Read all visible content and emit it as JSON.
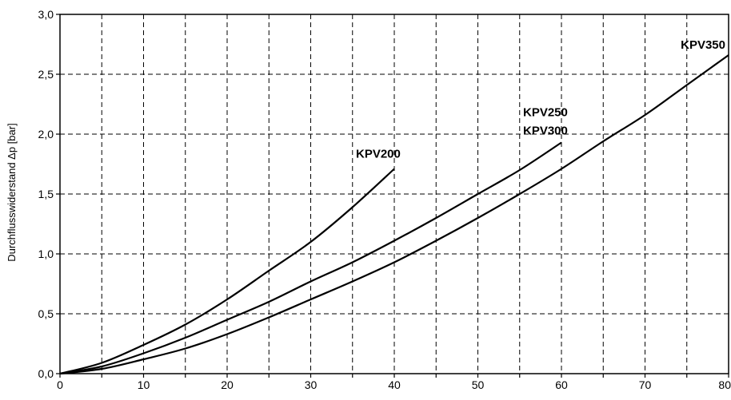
{
  "chart_data": {
    "type": "line",
    "title": "",
    "xlabel": "",
    "ylabel": "Durchflusswiderstand Δp [bar]",
    "xlim": [
      0,
      80
    ],
    "ylim": [
      0,
      3.0
    ],
    "grid": true,
    "x_ticks": [
      0,
      5,
      10,
      15,
      20,
      25,
      30,
      35,
      40,
      45,
      50,
      55,
      60,
      65,
      70,
      75,
      80
    ],
    "x_tick_labels": [
      "0",
      "10",
      "20",
      "30",
      "40",
      "50",
      "60",
      "70",
      "80"
    ],
    "x_tick_label_values": [
      0,
      10,
      20,
      30,
      40,
      50,
      60,
      70,
      80
    ],
    "y_ticks": [
      0,
      0.5,
      1.0,
      1.5,
      2.0,
      2.5,
      3.0
    ],
    "y_tick_labels": [
      "0,0",
      "0,5",
      "1,0",
      "1,5",
      "2,0",
      "2,5",
      "3,0"
    ],
    "series": [
      {
        "name": "KPV200",
        "x": [
          0,
          5,
          10,
          15,
          20,
          25,
          30,
          35,
          40
        ],
        "y": [
          0,
          0.09,
          0.24,
          0.41,
          0.62,
          0.86,
          1.1,
          1.39,
          1.71
        ]
      },
      {
        "name": "KPV250 / KPV300",
        "x": [
          0,
          5,
          10,
          15,
          20,
          25,
          30,
          35,
          40,
          45,
          50,
          55,
          60
        ],
        "y": [
          0,
          0.06,
          0.17,
          0.3,
          0.45,
          0.6,
          0.77,
          0.93,
          1.11,
          1.3,
          1.5,
          1.7,
          1.93
        ]
      },
      {
        "name": "KPV350",
        "x": [
          0,
          5,
          10,
          15,
          20,
          25,
          30,
          35,
          40,
          45,
          50,
          55,
          60,
          65,
          70,
          75,
          80
        ],
        "y": [
          0,
          0.04,
          0.12,
          0.21,
          0.33,
          0.47,
          0.62,
          0.77,
          0.93,
          1.11,
          1.3,
          1.5,
          1.71,
          1.94,
          2.16,
          2.41,
          2.66
        ]
      }
    ],
    "annotations": [
      {
        "text": "KPV200",
        "x": 40,
        "y": 1.71
      },
      {
        "text": "KPV250",
        "x": 60,
        "y": 1.93
      },
      {
        "text": "KPV300",
        "x": 60,
        "y": 1.93
      },
      {
        "text": "KPV350",
        "x": 80,
        "y": 2.66
      }
    ]
  }
}
